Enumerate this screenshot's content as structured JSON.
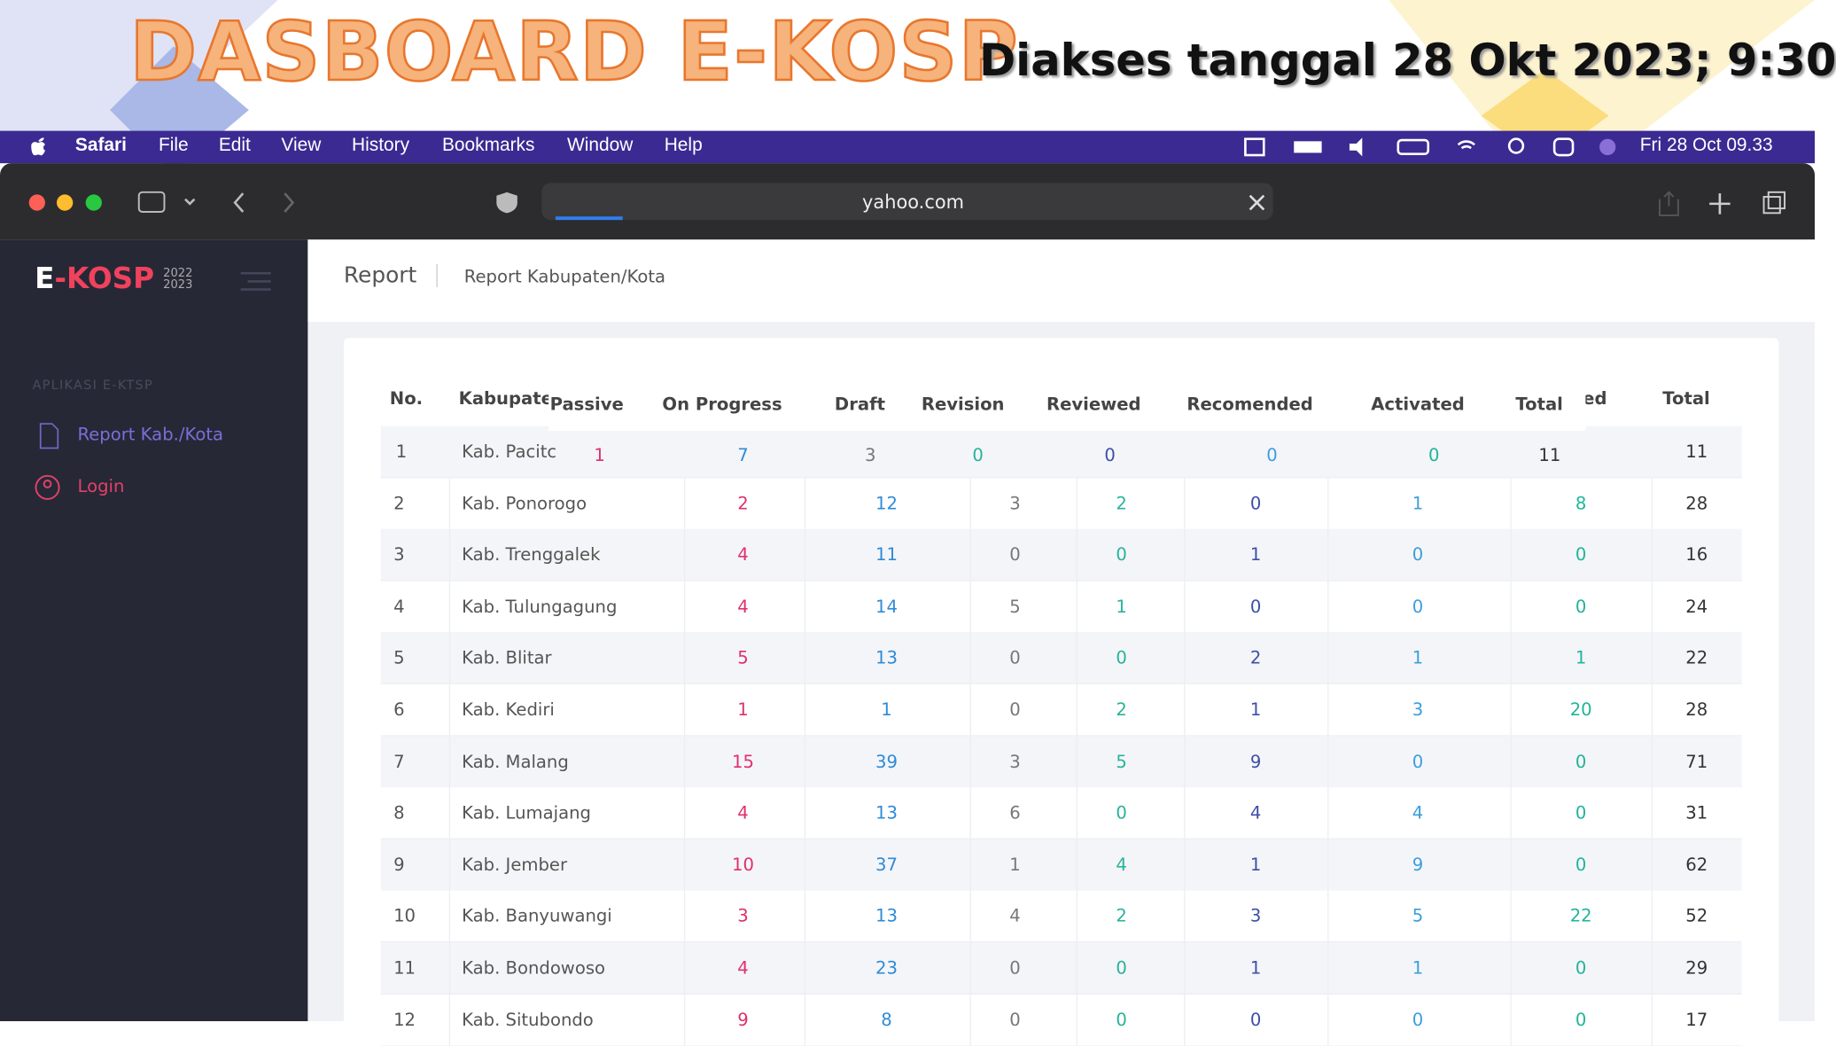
{
  "banner": {
    "title": "DASBOARD E-KOSP",
    "accessed": "Diakses tanggal 28 Okt 2023; 9:30"
  },
  "menubar": {
    "items": [
      "Safari",
      "File",
      "Edit",
      "View",
      "History",
      "Bookmarks",
      "Window",
      "Help"
    ],
    "clock": "Fri 28 Oct 09.33"
  },
  "browser": {
    "url": "yahoo.com"
  },
  "sidebar": {
    "logo_a": "E",
    "logo_b": "-KOSP",
    "years": [
      "2022",
      "2023"
    ],
    "section": "APLIKASI E-KTSP",
    "links": [
      "Report Kab./Kota",
      "Login"
    ]
  },
  "page": {
    "title": "Report",
    "breadcrumb": "Report Kabupaten/Kota"
  },
  "table": {
    "header_back": [
      "No.",
      "Kabupate",
      "ed",
      "Total"
    ],
    "header_front": [
      "Passive",
      "On Progress",
      "Draft",
      "Revision",
      "Reviewed",
      "Recomended",
      "Activated",
      "Total"
    ],
    "first_row": [
      "1",
      "Kab. Pacitc",
      1,
      7,
      3,
      0,
      0,
      0,
      0,
      11,
      11
    ],
    "rows": [
      [
        2,
        "Kab. Ponorogo",
        2,
        12,
        3,
        2,
        0,
        1,
        8,
        28
      ],
      [
        3,
        "Kab. Trenggalek",
        4,
        11,
        0,
        0,
        1,
        0,
        0,
        16
      ],
      [
        4,
        "Kab. Tulungagung",
        4,
        14,
        5,
        1,
        0,
        0,
        0,
        24
      ],
      [
        5,
        "Kab. Blitar",
        5,
        13,
        0,
        0,
        2,
        1,
        1,
        22
      ],
      [
        6,
        "Kab. Kediri",
        1,
        1,
        0,
        2,
        1,
        3,
        20,
        28
      ],
      [
        7,
        "Kab. Malang",
        15,
        39,
        3,
        5,
        9,
        0,
        0,
        71
      ],
      [
        8,
        "Kab. Lumajang",
        4,
        13,
        6,
        0,
        4,
        4,
        0,
        31
      ],
      [
        9,
        "Kab. Jember",
        10,
        37,
        1,
        4,
        1,
        9,
        0,
        62
      ],
      [
        10,
        "Kab. Banyuwangi",
        3,
        13,
        4,
        2,
        3,
        5,
        22,
        52
      ],
      [
        11,
        "Kab. Bondowoso",
        4,
        23,
        0,
        0,
        1,
        1,
        0,
        29
      ],
      [
        12,
        "Kab. Situbondo",
        9,
        8,
        0,
        0,
        0,
        0,
        0,
        17
      ]
    ]
  }
}
